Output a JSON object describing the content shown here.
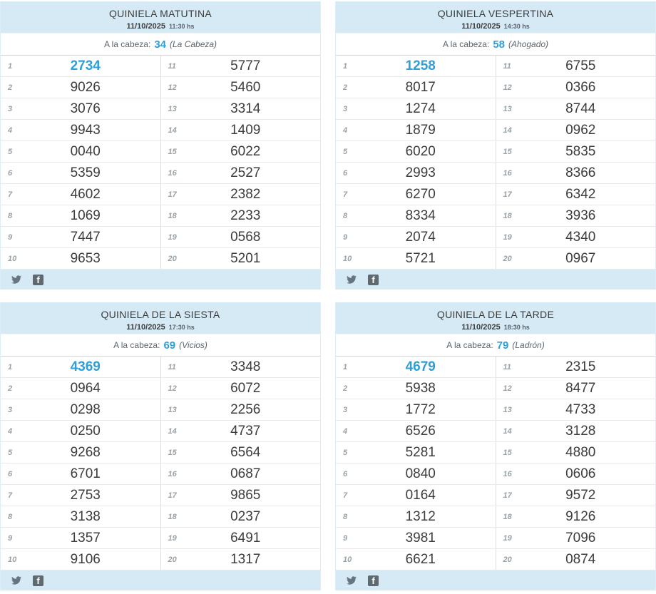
{
  "colors": {
    "header_bg": "#d6eaf6",
    "accent_blue": "#2e9fd8",
    "number_text": "#3d3d3d",
    "position_text": "#98a2a9",
    "icon_gray": "#66757f"
  },
  "footer": {
    "icons": [
      "twitter",
      "facebook"
    ],
    "facebook_glyph": "f"
  },
  "cards": [
    {
      "title": "QUINIELA MATUTINA",
      "date": "11/10/2025",
      "time": "11:30 hs",
      "cabeza_label": "A la cabeza:",
      "cabeza_number": "34",
      "cabeza_name": "(La Cabeza)",
      "positions_left": [
        "1",
        "2",
        "3",
        "4",
        "5",
        "6",
        "7",
        "8",
        "9",
        "10"
      ],
      "numbers_left": [
        "2734",
        "9026",
        "3076",
        "9943",
        "0040",
        "5359",
        "4602",
        "1069",
        "7447",
        "9653"
      ],
      "positions_right": [
        "11",
        "12",
        "13",
        "14",
        "15",
        "16",
        "17",
        "18",
        "19",
        "20"
      ],
      "numbers_right": [
        "5777",
        "5460",
        "3314",
        "1409",
        "6022",
        "2527",
        "2382",
        "2233",
        "0568",
        "5201"
      ]
    },
    {
      "title": "QUINIELA VESPERTINA",
      "date": "11/10/2025",
      "time": "14:30 hs",
      "cabeza_label": "A la cabeza:",
      "cabeza_number": "58",
      "cabeza_name": "(Ahogado)",
      "positions_left": [
        "1",
        "2",
        "3",
        "4",
        "5",
        "6",
        "7",
        "8",
        "9",
        "10"
      ],
      "numbers_left": [
        "1258",
        "8017",
        "1274",
        "1879",
        "6020",
        "2993",
        "6270",
        "8334",
        "2074",
        "5721"
      ],
      "positions_right": [
        "11",
        "12",
        "13",
        "14",
        "15",
        "16",
        "17",
        "18",
        "19",
        "20"
      ],
      "numbers_right": [
        "6755",
        "0366",
        "8744",
        "0962",
        "5835",
        "8366",
        "6342",
        "3936",
        "4340",
        "0967"
      ]
    },
    {
      "title": "QUINIELA DE LA SIESTA",
      "date": "11/10/2025",
      "time": "17:30 hs",
      "cabeza_label": "A la cabeza:",
      "cabeza_number": "69",
      "cabeza_name": "(Vicios)",
      "positions_left": [
        "1",
        "2",
        "3",
        "4",
        "5",
        "6",
        "7",
        "8",
        "9",
        "10"
      ],
      "numbers_left": [
        "4369",
        "0964",
        "0298",
        "0250",
        "9268",
        "6701",
        "2753",
        "3138",
        "1357",
        "9106"
      ],
      "positions_right": [
        "11",
        "12",
        "13",
        "14",
        "15",
        "16",
        "17",
        "18",
        "19",
        "20"
      ],
      "numbers_right": [
        "3348",
        "6072",
        "2256",
        "4737",
        "6564",
        "0687",
        "9865",
        "0237",
        "6491",
        "1317"
      ]
    },
    {
      "title": "QUINIELA DE LA TARDE",
      "date": "11/10/2025",
      "time": "18:30 hs",
      "cabeza_label": "A la cabeza:",
      "cabeza_number": "79",
      "cabeza_name": "(Ladrón)",
      "positions_left": [
        "1",
        "2",
        "3",
        "4",
        "5",
        "6",
        "7",
        "8",
        "9",
        "10"
      ],
      "numbers_left": [
        "4679",
        "5938",
        "1772",
        "6526",
        "5281",
        "0840",
        "0164",
        "1312",
        "3981",
        "6621"
      ],
      "positions_right": [
        "11",
        "12",
        "13",
        "14",
        "15",
        "16",
        "17",
        "18",
        "19",
        "20"
      ],
      "numbers_right": [
        "2315",
        "8477",
        "4733",
        "3128",
        "4880",
        "0606",
        "9572",
        "9126",
        "7096",
        "0874"
      ]
    }
  ]
}
